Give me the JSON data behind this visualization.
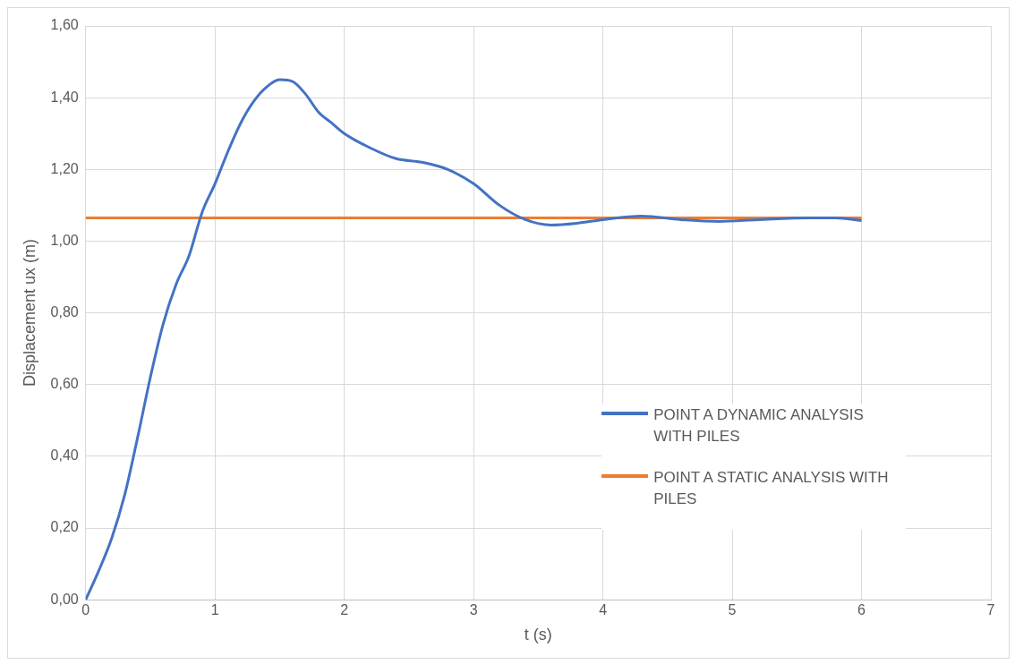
{
  "chart_data": {
    "type": "line",
    "xlabel": "t (s)",
    "ylabel": "Displacement ux (m)",
    "xlim": [
      0,
      7
    ],
    "xticks": [
      0,
      1,
      2,
      3,
      4,
      5,
      6,
      7
    ],
    "ylim": [
      0,
      1.6
    ],
    "yticks": [
      {
        "value": 0,
        "label": "0,00"
      },
      {
        "value": 0.2,
        "label": "0,20"
      },
      {
        "value": 0.4,
        "label": "0,40"
      },
      {
        "value": 0.6,
        "label": "0,60"
      },
      {
        "value": 0.8,
        "label": "0,80"
      },
      {
        "value": 1,
        "label": "1,00"
      },
      {
        "value": 1.2,
        "label": "1,20"
      },
      {
        "value": 1.4,
        "label": "1,40"
      },
      {
        "value": 1.6,
        "label": "1,60"
      }
    ],
    "grid": true,
    "legend": "right",
    "marker": "none",
    "line_style": "solid",
    "series": [
      {
        "name": "POINT A DYNAMIC ANALYSIS WITH PILES",
        "color": "#4472c4",
        "x": [
          0,
          0.1,
          0.2,
          0.3,
          0.4,
          0.5,
          0.6,
          0.7,
          0.8,
          0.9,
          1,
          1.1,
          1.2,
          1.3,
          1.4,
          1.5,
          1.6,
          1.7,
          1.8,
          1.9,
          2,
          2.2,
          2.4,
          2.6,
          2.8,
          3,
          3.2,
          3.4,
          3.6,
          3.8,
          4,
          4.3,
          4.6,
          4.9,
          5.2,
          5.6,
          5.8,
          6
        ],
        "values": [
          0,
          0.08,
          0.17,
          0.29,
          0.45,
          0.62,
          0.77,
          0.88,
          0.96,
          1.08,
          1.16,
          1.25,
          1.33,
          1.39,
          1.43,
          1.45,
          1.445,
          1.41,
          1.36,
          1.33,
          1.3,
          1.26,
          1.23,
          1.22,
          1.2,
          1.16,
          1.1,
          1.06,
          1.045,
          1.05,
          1.06,
          1.07,
          1.06,
          1.055,
          1.06,
          1.065,
          1.065,
          1.057
        ]
      },
      {
        "name": "POINT A STATIC ANALYSIS WITH PILES",
        "color": "#ed7d31",
        "x": [
          0,
          6
        ],
        "values": [
          1.065,
          1.065
        ]
      }
    ]
  }
}
